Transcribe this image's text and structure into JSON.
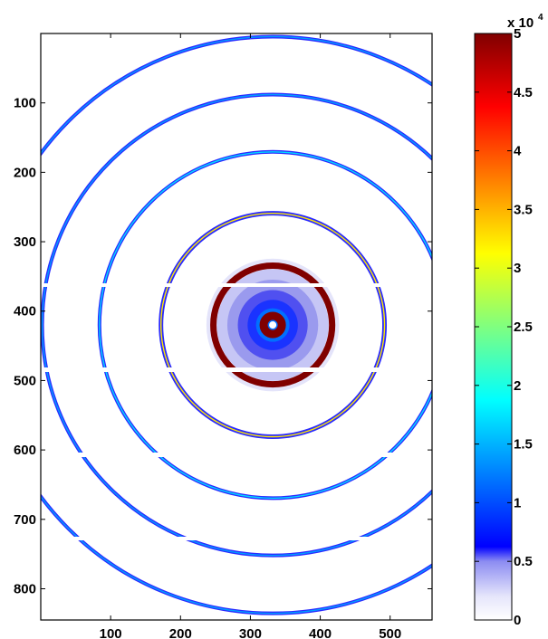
{
  "chart_data": {
    "type": "heatmap",
    "title": "",
    "xlabel": "",
    "ylabel": "",
    "xlim": [
      0,
      560
    ],
    "ylim": [
      845,
      0
    ],
    "xticks": [
      "100",
      "200",
      "300",
      "400",
      "500"
    ],
    "yticks": [
      "100",
      "200",
      "300",
      "400",
      "500",
      "600",
      "700",
      "800"
    ],
    "center": {
      "x": 332,
      "y": 420
    },
    "rings": [
      {
        "radius": 13,
        "intensity": 50000
      },
      {
        "radius": 85,
        "intensity": 50000
      },
      {
        "radius": 160,
        "intensity": 38000
      },
      {
        "radius": 248,
        "intensity": 20000
      },
      {
        "radius": 330,
        "intensity": 9000
      },
      {
        "radius": 413,
        "intensity": 7000
      }
    ],
    "colorbar": {
      "range": [
        0,
        50000
      ],
      "colormap": "jet",
      "tick_labels": [
        "0",
        "0.5",
        "1",
        "1.5",
        "2",
        "2.5",
        "3",
        "3.5",
        "4",
        "4.5",
        "5"
      ],
      "exponent_base": "x 10",
      "exponent_power": "4"
    }
  }
}
